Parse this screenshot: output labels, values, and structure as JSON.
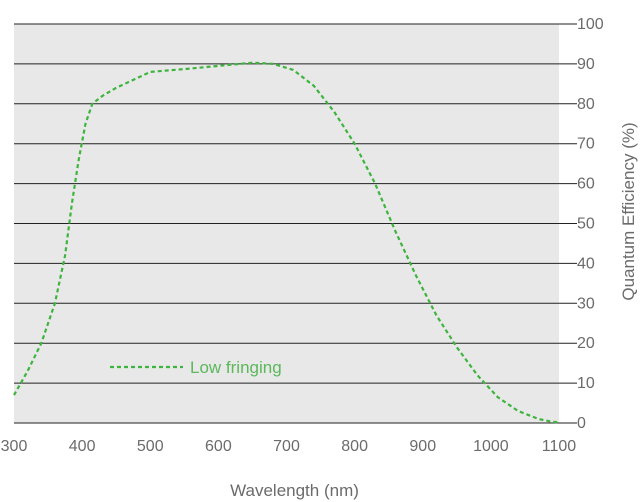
{
  "chart_data": {
    "type": "line",
    "title": "",
    "xlabel": "Wavelength (nm)",
    "ylabel": "Quantum Efficiency (%)",
    "xlim": [
      300,
      1100
    ],
    "ylim": [
      0,
      100
    ],
    "x_ticks": [
      "300",
      "400",
      "500",
      "600",
      "700",
      "800",
      "900",
      "1000",
      "1100"
    ],
    "y_ticks": [
      "0",
      "10",
      "20",
      "30",
      "40",
      "50",
      "60",
      "70",
      "80",
      "90",
      "100"
    ],
    "y_axis_side": "right",
    "grid": "horizontal",
    "plot_background": "#e8e8e8",
    "legend": {
      "placement": "bottom-left",
      "style": "dashed"
    },
    "series": [
      {
        "name": "Low fringing",
        "color": "#3db43d",
        "style": "dashed",
        "points": [
          [
            300,
            7
          ],
          [
            320,
            13
          ],
          [
            340,
            20
          ],
          [
            360,
            30
          ],
          [
            375,
            42
          ],
          [
            385,
            55
          ],
          [
            395,
            66
          ],
          [
            405,
            75
          ],
          [
            415,
            80
          ],
          [
            430,
            82
          ],
          [
            450,
            84
          ],
          [
            475,
            86
          ],
          [
            500,
            88
          ],
          [
            550,
            88.7
          ],
          [
            600,
            89.5
          ],
          [
            650,
            90.3
          ],
          [
            680,
            90
          ],
          [
            710,
            88.5
          ],
          [
            740,
            84.5
          ],
          [
            770,
            78
          ],
          [
            800,
            70
          ],
          [
            830,
            60
          ],
          [
            860,
            48
          ],
          [
            890,
            37
          ],
          [
            920,
            27
          ],
          [
            950,
            19
          ],
          [
            980,
            12
          ],
          [
            1010,
            6.5
          ],
          [
            1040,
            3
          ],
          [
            1070,
            1
          ],
          [
            1090,
            0.3
          ],
          [
            1100,
            0.2
          ]
        ]
      }
    ]
  }
}
